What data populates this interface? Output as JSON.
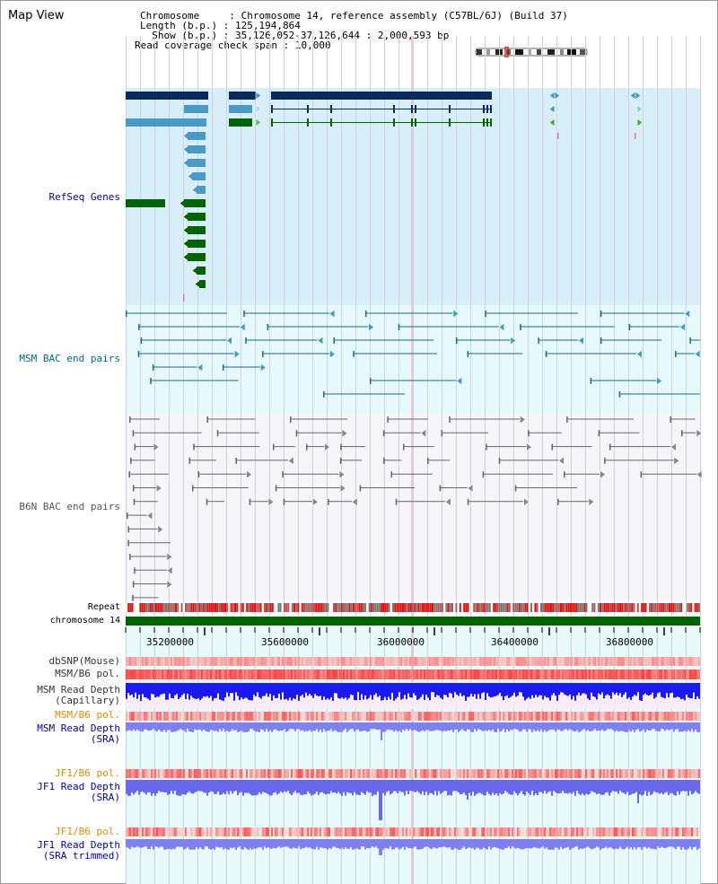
{
  "page": {
    "title": "Map View"
  },
  "header": {
    "rows": [
      {
        "key": "Chromosome     ",
        "value": "Chromosome 14, reference assembly (C57BL/6J) (Build 37)"
      },
      {
        "key": "Length (b.p.) ",
        "value": "125,194,864"
      },
      {
        "key": "  Show (b.p.) ",
        "value": "35,126,052-37,126,644 : 2,000,593 bp"
      },
      {
        "key": "Read coverage check span ",
        "value": "10,000"
      }
    ]
  },
  "axis": {
    "ticks": [
      "35200000",
      "35600000",
      "36000000",
      "36400000",
      "36800000"
    ],
    "chromosome_label": "chromosome 14",
    "repeat_label": "Repeat"
  },
  "tracks": {
    "refseq": {
      "label": "RefSeq Genes",
      "color": "#000099"
    },
    "msm_bac": {
      "label": "MSM BAC end pairs",
      "color": "#006a8a"
    },
    "b6n_bac": {
      "label": "B6N BAC end pairs",
      "color": "#555555"
    },
    "dbsnp": {
      "label": "dbSNP(Mouse)",
      "color": "#333333"
    },
    "msm_b6_pol_1": {
      "label": "MSM/B6 pol.",
      "color": "#333333"
    },
    "msm_depth_cap": {
      "label": "MSM Read Depth\n(Capillary)",
      "color": "#333333"
    },
    "msm_b6_pol_2": {
      "label": "MSM/B6 pol.",
      "color": "#e08a00"
    },
    "msm_depth_sra": {
      "label": "MSM Read Depth\n(SRA)",
      "color": "#0000aa"
    },
    "jf1_pol_1": {
      "label": "JF1/B6 pol.",
      "color": "#e08a00"
    },
    "jf1_depth_sra": {
      "label": "JF1 Read Depth\n(SRA)",
      "color": "#0000aa"
    },
    "jf1_pol_2": {
      "label": "JF1/B6 pol.",
      "color": "#e08a00"
    },
    "jf1_depth_trim": {
      "label": "JF1 Read Depth\n(SRA trimmed)",
      "color": "#0000aa"
    }
  },
  "colors": {
    "refseq_bg": "#d8effa",
    "msm_bg": "#e6fafc",
    "b6n_bg": "#f4f4f8",
    "gene_navy": "#0a2a5e",
    "gene_blue": "#4a9ac8",
    "gene_green": "#006400",
    "chromosome_bar": "#006400",
    "repeat_red": "#dd1111",
    "depth_blue": "#1a1aee",
    "depth_light": "#8080f0"
  }
}
